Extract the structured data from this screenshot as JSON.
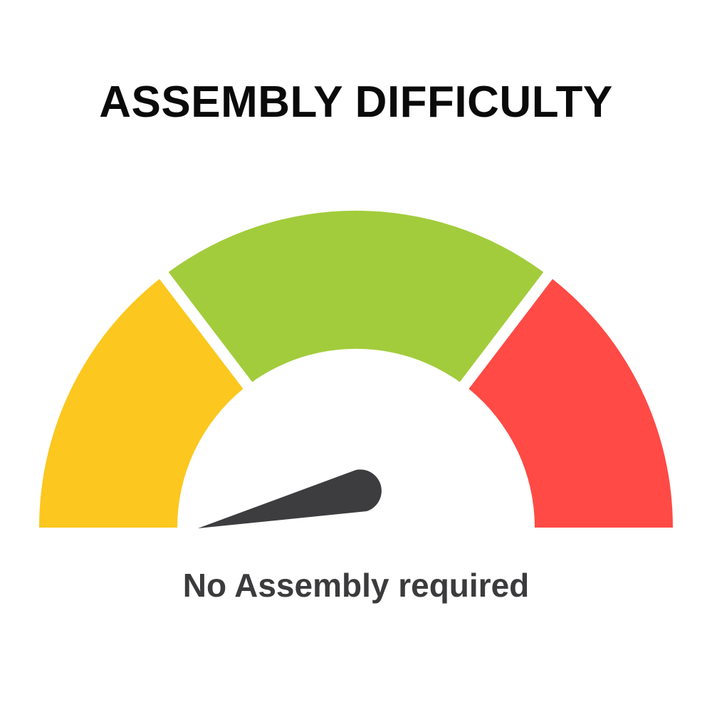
{
  "title": "ASSEMBLY DIFFICULTY",
  "caption": "No Assembly required",
  "gauge": {
    "segments": [
      {
        "color": "#FCC71E"
      },
      {
        "color": "#A2CC3C"
      },
      {
        "color": "#FF4A45"
      }
    ],
    "needle_color": "#3D3D3F",
    "needle_level": 0.0
  }
}
